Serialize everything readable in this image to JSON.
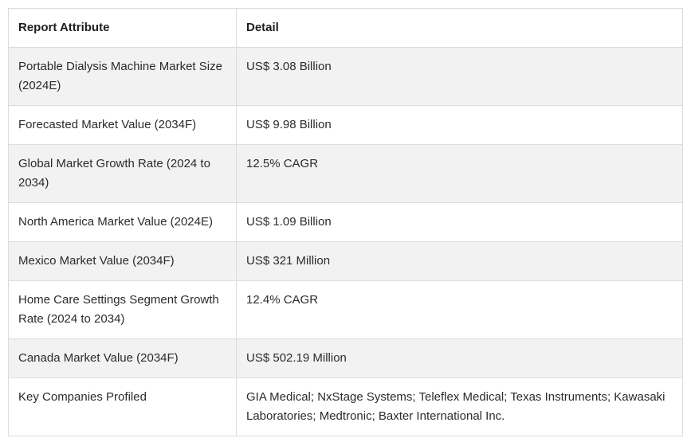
{
  "table": {
    "headers": [
      "Report Attribute",
      "Detail"
    ],
    "rows": [
      {
        "attribute": "Portable Dialysis Machine Market Size (2024E)",
        "detail": "US$ 3.08 Billion"
      },
      {
        "attribute": "Forecasted Market Value (2034F)",
        "detail": "US$ 9.98 Billion"
      },
      {
        "attribute": "Global Market Growth Rate (2024 to 2034)",
        "detail": "12.5% CAGR"
      },
      {
        "attribute": "North America Market Value (2024E)",
        "detail": "US$ 1.09 Billion"
      },
      {
        "attribute": "Mexico Market Value (2034F)",
        "detail": "US$ 321 Million"
      },
      {
        "attribute": "Home Care Settings Segment Growth Rate (2024 to 2034)",
        "detail": "12.4% CAGR"
      },
      {
        "attribute": "Canada Market Value (2034F)",
        "detail": "US$ 502.19 Million"
      },
      {
        "attribute": "Key Companies Profiled",
        "detail": "GIA Medical; NxStage Systems; Teleflex Medical; Texas Instruments; Kawasaki Laboratories; Medtronic; Baxter International Inc."
      }
    ]
  }
}
